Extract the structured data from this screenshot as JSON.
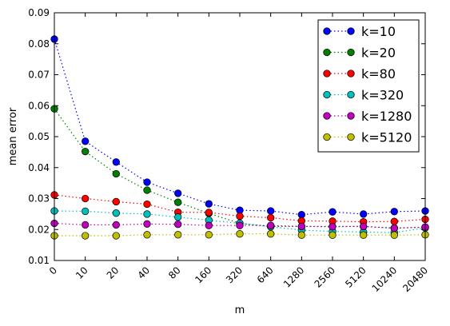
{
  "chart_data": {
    "type": "line",
    "title": "",
    "xlabel": "m",
    "ylabel": "mean error",
    "categories": [
      "0",
      "10",
      "20",
      "40",
      "80",
      "160",
      "320",
      "640",
      "1280",
      "2560",
      "5120",
      "10240",
      "20480"
    ],
    "yticks": [
      "0.01",
      "0.02",
      "0.03",
      "0.04",
      "0.05",
      "0.06",
      "0.07",
      "0.08",
      "0.09"
    ],
    "ylim": [
      0.01,
      0.09
    ],
    "legend_position": "top-right",
    "grid": false,
    "series": [
      {
        "name": "k=10",
        "color": "#0000ff",
        "values": [
          0.0815,
          0.0485,
          0.0418,
          0.0353,
          0.0317,
          0.0283,
          0.0262,
          0.026,
          0.0248,
          0.0257,
          0.025,
          0.0258,
          0.026
        ]
      },
      {
        "name": "k=20",
        "color": "#008000",
        "values": [
          0.059,
          0.0452,
          0.038,
          0.0327,
          0.0288,
          0.0252,
          0.022,
          0.021,
          0.021,
          0.021,
          0.021,
          0.0205,
          0.0207
        ]
      },
      {
        "name": "k=80",
        "color": "#ff0000",
        "values": [
          0.0312,
          0.03,
          0.029,
          0.0282,
          0.0256,
          0.0255,
          0.0243,
          0.0238,
          0.0228,
          0.0227,
          0.0225,
          0.0226,
          0.0233
        ]
      },
      {
        "name": "k=320",
        "color": "#00bfbf",
        "values": [
          0.026,
          0.0259,
          0.0253,
          0.025,
          0.024,
          0.023,
          0.022,
          0.0209,
          0.0198,
          0.0194,
          0.0192,
          0.019,
          0.0205
        ]
      },
      {
        "name": "k=1280",
        "color": "#bf00bf",
        "values": [
          0.022,
          0.0215,
          0.0215,
          0.0218,
          0.0217,
          0.0213,
          0.0213,
          0.0213,
          0.021,
          0.0209,
          0.021,
          0.0204,
          0.0208
        ]
      },
      {
        "name": "k=5120",
        "color": "#bfbf00",
        "values": [
          0.018,
          0.018,
          0.018,
          0.0183,
          0.0183,
          0.0183,
          0.0186,
          0.0186,
          0.0182,
          0.0182,
          0.0182,
          0.0182,
          0.0183
        ]
      }
    ]
  }
}
